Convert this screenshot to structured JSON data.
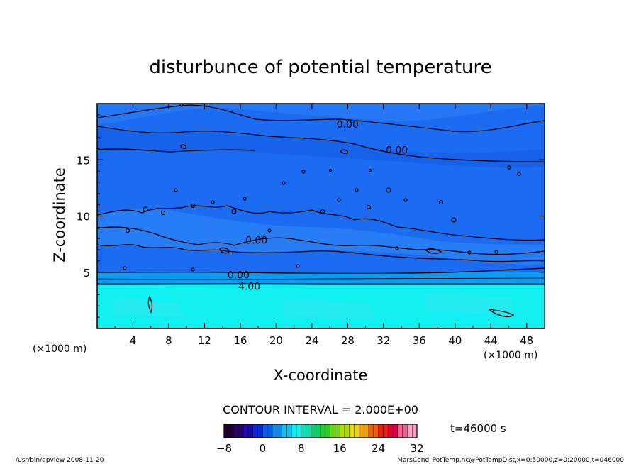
{
  "chart_data": {
    "type": "heatmap",
    "title": "disturbunce of potential temperature",
    "xlabel": "X-coordinate",
    "ylabel": "Z-coordinate",
    "x_unit": "(×1000 m)",
    "y_unit": "(×1000 m)",
    "xlim": [
      0,
      50
    ],
    "ylim": [
      0,
      20
    ],
    "x_ticks": [
      4,
      8,
      12,
      16,
      20,
      24,
      28,
      32,
      36,
      40,
      44,
      48
    ],
    "y_ticks": [
      5,
      10,
      15
    ],
    "contour_interval": "CONTOUR INTERVAL = 2.000E+00",
    "time_label": "t=46000 s",
    "colorbar": {
      "range": [
        -8,
        32
      ],
      "ticks": [
        -8,
        0,
        8,
        16,
        24,
        32
      ],
      "colors": [
        "#200030",
        "#2a006e",
        "#1e0ab0",
        "#0a2ae0",
        "#0a5cf0",
        "#0a8cf6",
        "#0ac0f8",
        "#0af0f0",
        "#08e0b0",
        "#08d070",
        "#20d020",
        "#70d810",
        "#b0e000",
        "#e8d800",
        "#f0a000",
        "#f06000",
        "#e82010",
        "#e00040",
        "#f06090",
        "#f8a0c8"
      ]
    },
    "contour_labels": [
      "0.00",
      "0.00",
      "0.00",
      "0.00",
      "4.00"
    ],
    "contour_label_positions_data": [
      {
        "text": "0.00",
        "x": 28.0,
        "z": 18.1
      },
      {
        "text": "0.00",
        "x": 33.5,
        "z": 15.8
      },
      {
        "text": "0.00",
        "x": 17.8,
        "z": 7.8
      },
      {
        "text": "0.00",
        "x": 15.8,
        "z": 4.7
      },
      {
        "text": "4.00",
        "x": 17.0,
        "z": 3.7
      }
    ],
    "field_regions": [
      {
        "z_from": 0,
        "z_to": 3.8,
        "value": 6,
        "color": "#10f0f0"
      },
      {
        "z_from": 3.8,
        "z_to": 4.6,
        "value": 2,
        "color": "#0a9cf4"
      },
      {
        "z_from": 4.6,
        "z_to": 20,
        "value": 0,
        "color": "#1b6cf2"
      }
    ]
  },
  "footer": {
    "left": "/usr/bin/gpview  2008-11-20",
    "right": "MarsCond_PotTemp.nc@PotTempDist,x=0:50000,z=0:20000,t=046000"
  },
  "colors": {
    "plot_background": "#1b6cf2",
    "cyan_layer": "#10f0f0"
  }
}
